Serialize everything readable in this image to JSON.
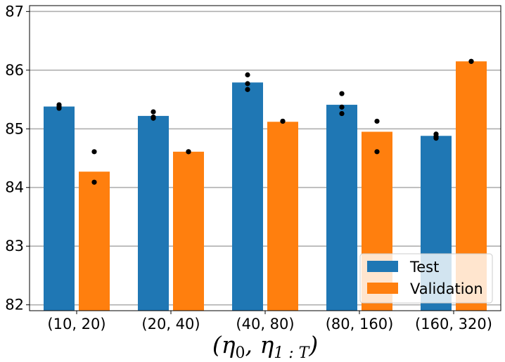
{
  "chart_data": {
    "type": "bar",
    "title": "",
    "xlabel": "(η0, η1:T)",
    "xlabel_parts": {
      "open": "(",
      "eta0_symbol": "η",
      "eta0_sub": "0",
      "comma": ", ",
      "eta1_symbol": "η",
      "eta1_sub": "1 : T",
      "close": ")"
    },
    "ylabel": "",
    "ylim": [
      81.9,
      87.1
    ],
    "yticks": [
      82,
      83,
      84,
      85,
      86,
      87
    ],
    "grid": "horizontal",
    "categories": [
      "(10, 20)",
      "(20, 40)",
      "(40, 80)",
      "(80, 160)",
      "(160, 320)"
    ],
    "series": [
      {
        "name": "Test",
        "color": "#1f77b4",
        "values": [
          85.38,
          85.22,
          85.79,
          85.41,
          84.88
        ],
        "points": [
          [
            85.41,
            85.38,
            85.35
          ],
          [
            85.29,
            85.2,
            85.18
          ],
          [
            85.92,
            85.77,
            85.67
          ],
          [
            85.6,
            85.37,
            85.26
          ],
          [
            84.91,
            84.87,
            84.84
          ]
        ]
      },
      {
        "name": "Validation",
        "color": "#ff7f0e",
        "values": [
          84.27,
          84.61,
          85.12,
          84.95,
          86.15
        ],
        "points": [
          [
            84.61,
            84.09
          ],
          [
            84.61,
            84.61
          ],
          [
            85.13,
            85.13
          ],
          [
            85.13,
            84.61
          ],
          [
            86.15,
            86.15
          ]
        ]
      }
    ],
    "legend": {
      "position": "bottom-right",
      "entries": [
        "Test",
        "Validation"
      ]
    }
  }
}
